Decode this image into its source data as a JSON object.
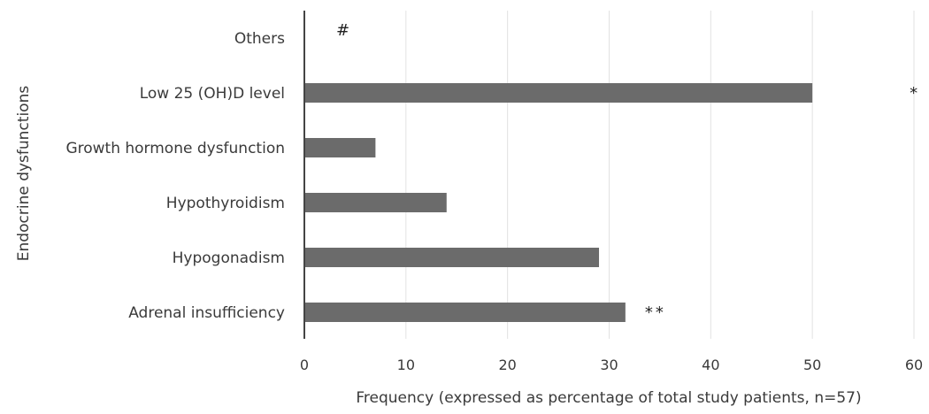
{
  "chart_data": {
    "type": "bar",
    "orientation": "horizontal",
    "categories": [
      "Others",
      "Low 25 (OH)D level",
      "Growth hormone dysfunction",
      "Hypothyroidism",
      "Hypogonadism",
      "Adrenal insufficiency"
    ],
    "values": [
      0,
      50,
      7,
      14,
      29,
      31.6
    ],
    "annotations": [
      "#",
      "*",
      "",
      "",
      "",
      "**"
    ],
    "xlabel": "Frequency (expressed as percentage of total study patients, n=57)",
    "ylabel": "Endocrine dysfunctions",
    "xlim": [
      0,
      60
    ],
    "xticks": [
      0,
      10,
      20,
      30,
      40,
      50,
      60
    ],
    "grid": "vertical",
    "legend": "none",
    "colors": {
      "bar": "#6b6b6b",
      "grid": "#e2e2e2",
      "axis": "#444444",
      "text": "#3a3a3a"
    }
  }
}
